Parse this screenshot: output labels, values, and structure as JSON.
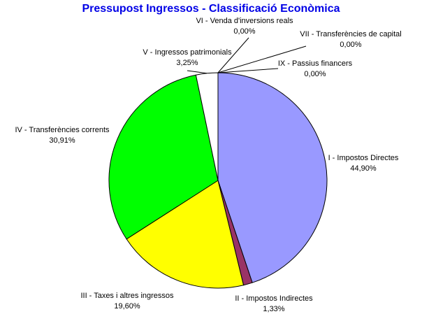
{
  "chart_data": {
    "type": "pie",
    "title": "Pressupost Ingressos - Classificació Econòmica",
    "slices": [
      {
        "label": "I - Impostos Directes",
        "value_label": "44,90%",
        "value": 44.9,
        "color": "#9999ff"
      },
      {
        "label": "II - Impostos Indirectes",
        "value_label": "1,33%",
        "value": 1.33,
        "color": "#993366"
      },
      {
        "label": "III - Taxes i altres ingressos",
        "value_label": "19,60%",
        "value": 19.6,
        "color": "#ffff00"
      },
      {
        "label": "IV - Transferències corrents",
        "value_label": "30,91%",
        "value": 30.91,
        "color": "#00ff00"
      },
      {
        "label": "V - Ingressos patrimonials",
        "value_label": "3,25%",
        "value": 3.25,
        "color": "#ffffff"
      },
      {
        "label": "VI - Venda d'inversions reals",
        "value_label": "0,00%",
        "value": 0.0,
        "color": "#ff0000"
      },
      {
        "label": "VII - Transferències de capital",
        "value_label": "0,00%",
        "value": 0.0,
        "color": "#0000ff"
      },
      {
        "label": "IX - Passius financers",
        "value_label": "0,00%",
        "value": 0.0,
        "color": "#ff00ff"
      }
    ],
    "legend": "none"
  }
}
